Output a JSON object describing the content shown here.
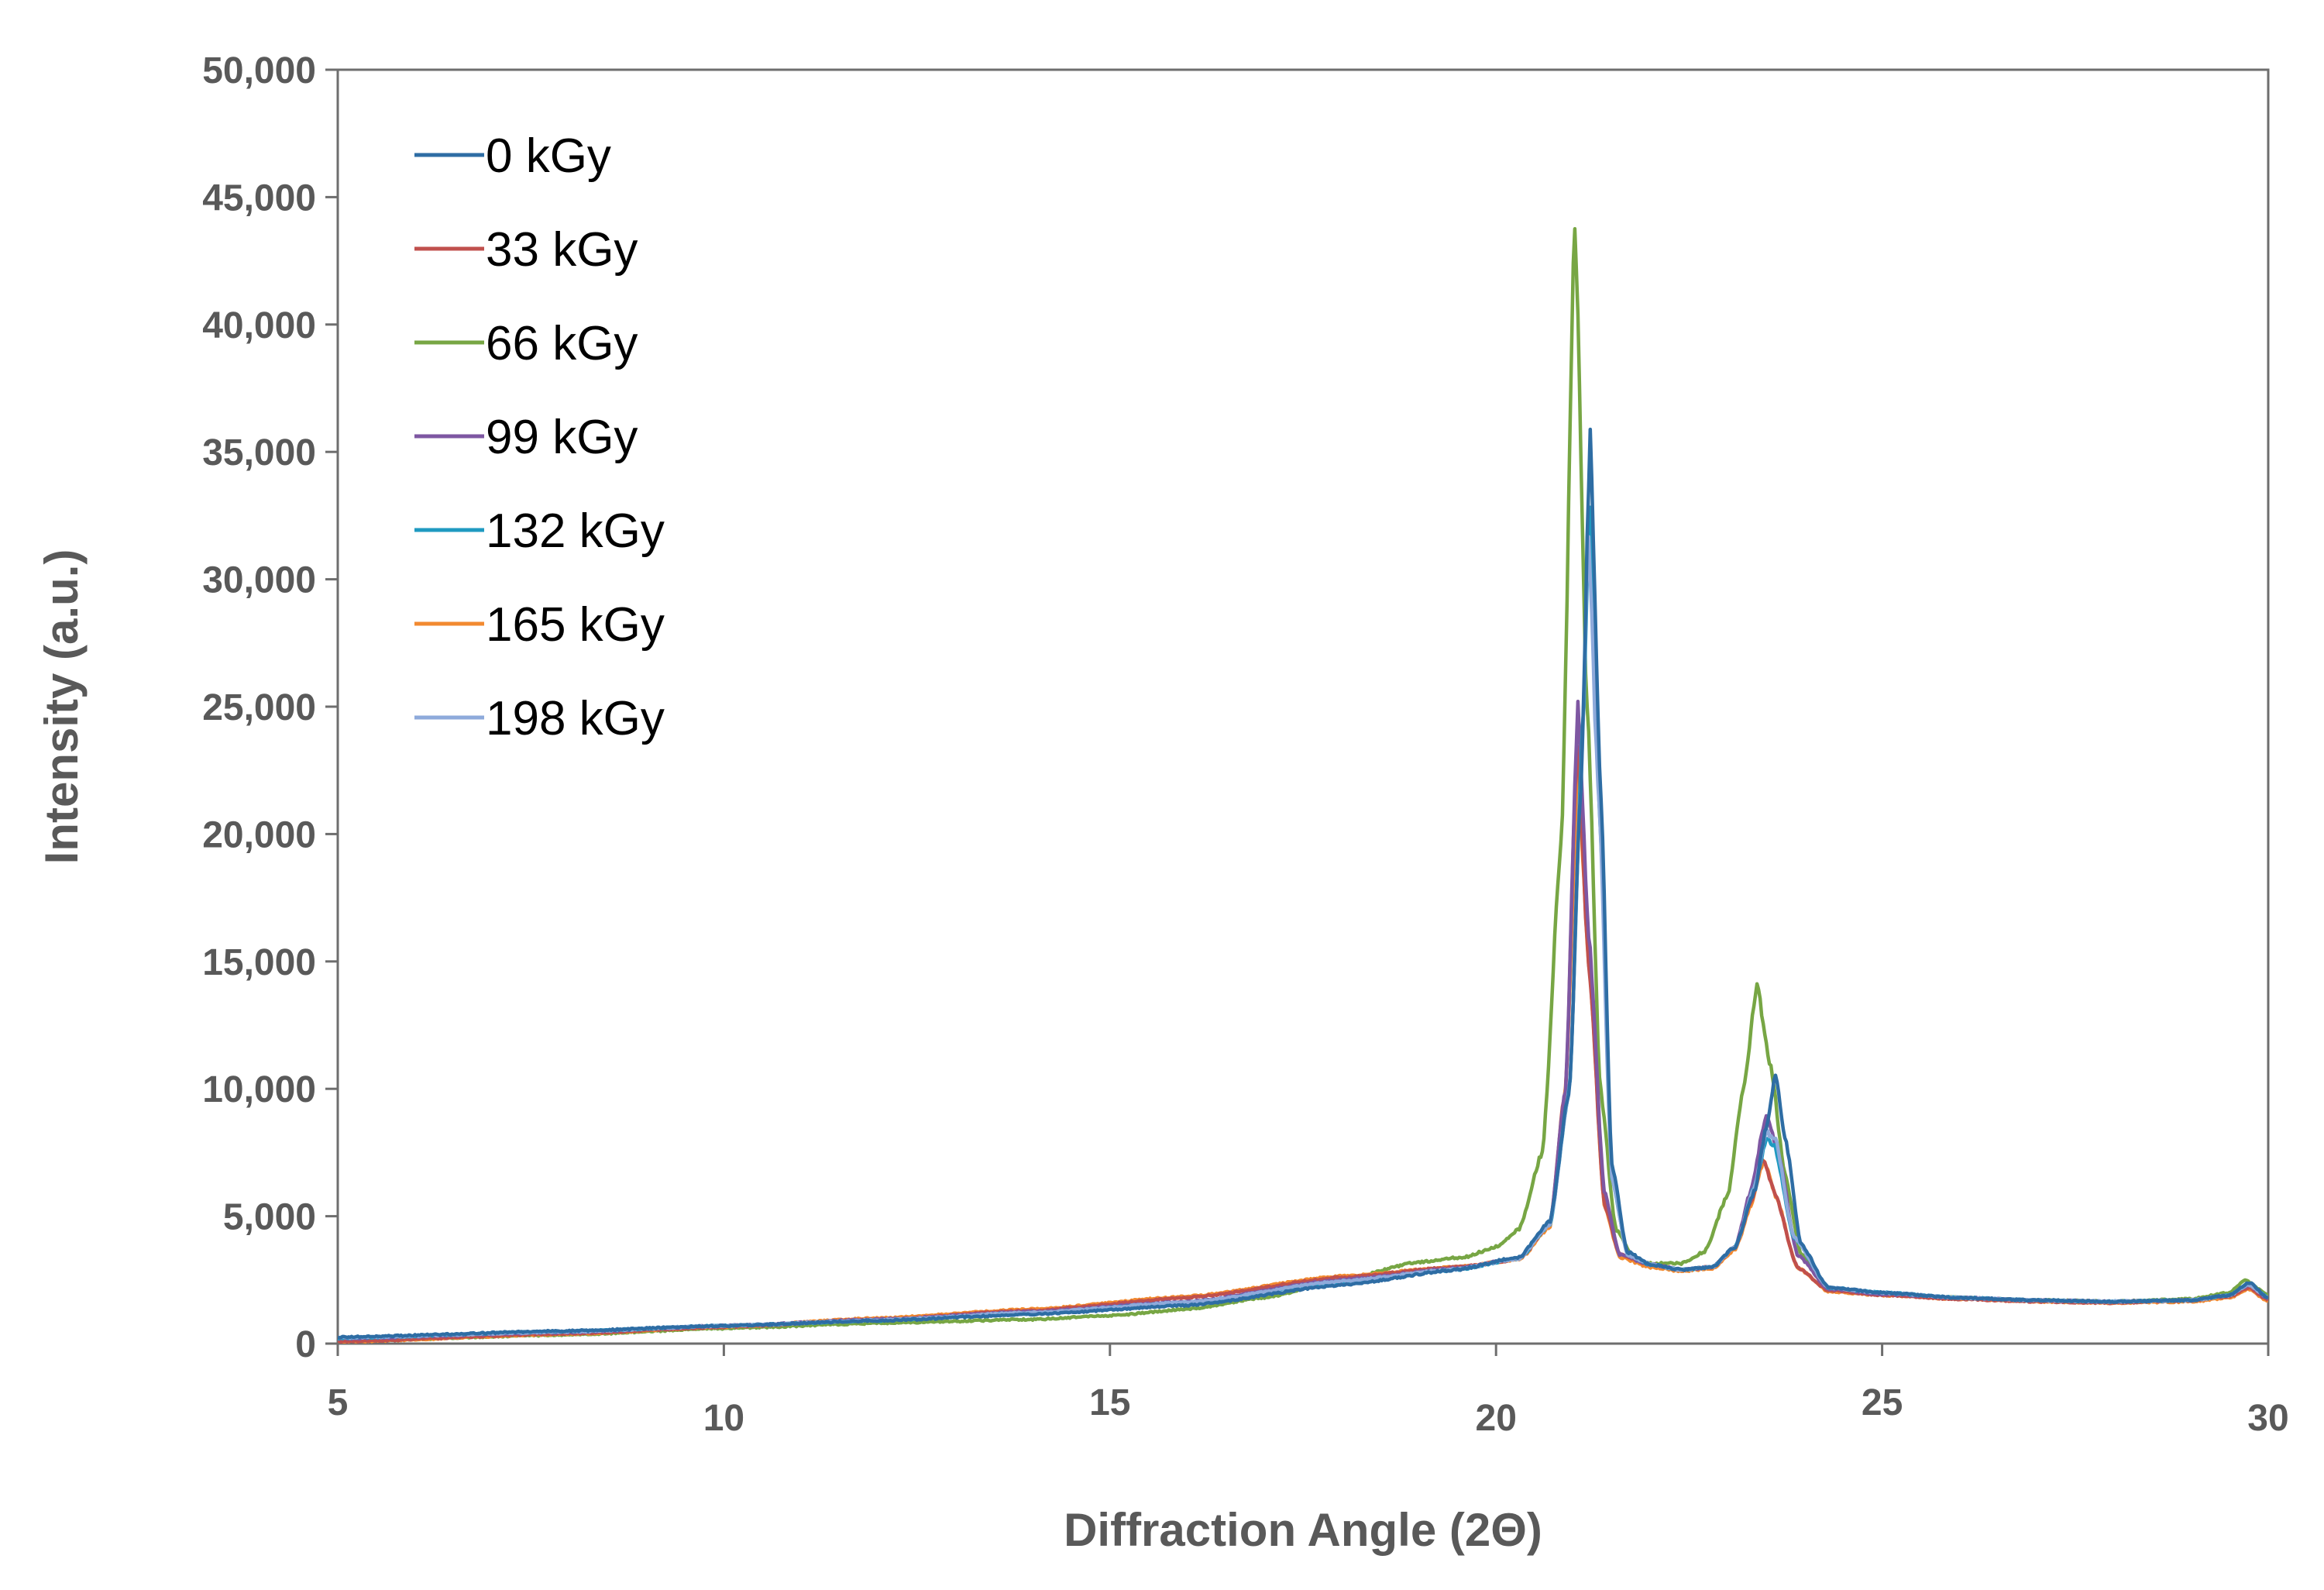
{
  "chart_data": {
    "type": "line",
    "title": "",
    "xlabel": "Diffraction Angle (2Θ)",
    "ylabel": "Intensity (a.u.)",
    "xlim": [
      5,
      30
    ],
    "ylim": [
      0,
      50000
    ],
    "x_ticks": [
      5,
      10,
      15,
      20,
      25,
      30
    ],
    "x_tick_labels": [
      "5",
      "10",
      "15",
      "20",
      "25",
      "30"
    ],
    "y_ticks": [
      0,
      5000,
      10000,
      15000,
      20000,
      25000,
      30000,
      35000,
      40000,
      45000,
      50000
    ],
    "y_tick_labels": [
      "0",
      "5,000",
      "10,000",
      "15,000",
      "20,000",
      "25,000",
      "30,000",
      "35,000",
      "40,000",
      "45,000",
      "50,000"
    ],
    "grid": false,
    "legend_position": "top-left",
    "series": [
      {
        "name": "0 kGy",
        "color": "#2E6DA4",
        "points": [
          [
            5,
            250
          ],
          [
            8,
            500
          ],
          [
            10,
            700
          ],
          [
            12,
            900
          ],
          [
            14,
            1150
          ],
          [
            16,
            1500
          ],
          [
            18,
            2300
          ],
          [
            19.5,
            2900
          ],
          [
            20.3,
            3400
          ],
          [
            20.7,
            4800
          ],
          [
            20.95,
            10000
          ],
          [
            21.1,
            22000
          ],
          [
            21.22,
            35500
          ],
          [
            21.35,
            22000
          ],
          [
            21.5,
            7000
          ],
          [
            21.7,
            3600
          ],
          [
            22,
            3100
          ],
          [
            22.4,
            2900
          ],
          [
            22.8,
            3000
          ],
          [
            23.1,
            3800
          ],
          [
            23.35,
            6000
          ],
          [
            23.5,
            8500
          ],
          [
            23.62,
            10500
          ],
          [
            23.75,
            8000
          ],
          [
            23.95,
            3900
          ],
          [
            24.3,
            2200
          ],
          [
            25,
            2000
          ],
          [
            26,
            1800
          ],
          [
            27,
            1700
          ],
          [
            28,
            1650
          ],
          [
            29,
            1700
          ],
          [
            29.5,
            1900
          ],
          [
            29.75,
            2400
          ],
          [
            30,
            1800
          ]
        ]
      },
      {
        "name": "33 kGy",
        "color": "#C0504D",
        "points": [
          [
            5,
            80
          ],
          [
            8,
            400
          ],
          [
            10,
            650
          ],
          [
            12,
            950
          ],
          [
            14,
            1300
          ],
          [
            16,
            1800
          ],
          [
            18,
            2600
          ],
          [
            19.5,
            3000
          ],
          [
            20.3,
            3300
          ],
          [
            20.7,
            4700
          ],
          [
            20.9,
            10000
          ],
          [
            21.05,
            23500
          ],
          [
            21.2,
            15000
          ],
          [
            21.4,
            5500
          ],
          [
            21.6,
            3500
          ],
          [
            22,
            3100
          ],
          [
            22.4,
            2900
          ],
          [
            22.8,
            3000
          ],
          [
            23.1,
            3800
          ],
          [
            23.3,
            5500
          ],
          [
            23.45,
            7300
          ],
          [
            23.6,
            6000
          ],
          [
            23.9,
            3000
          ],
          [
            24.3,
            2100
          ],
          [
            25,
            1900
          ],
          [
            26,
            1750
          ],
          [
            27,
            1650
          ],
          [
            28,
            1600
          ],
          [
            29,
            1700
          ],
          [
            29.5,
            1850
          ],
          [
            29.75,
            2200
          ],
          [
            30,
            1700
          ]
        ]
      },
      {
        "name": "66 kGy",
        "color": "#77A644",
        "points": [
          [
            5,
            100
          ],
          [
            8,
            350
          ],
          [
            10,
            600
          ],
          [
            12,
            800
          ],
          [
            14,
            950
          ],
          [
            15,
            1100
          ],
          [
            16,
            1350
          ],
          [
            17,
            1800
          ],
          [
            18,
            2500
          ],
          [
            19,
            3200
          ],
          [
            19.6,
            3400
          ],
          [
            20,
            3800
          ],
          [
            20.3,
            4500
          ],
          [
            20.6,
            7500
          ],
          [
            20.85,
            20000
          ],
          [
            21.02,
            44000
          ],
          [
            21.18,
            25000
          ],
          [
            21.35,
            10000
          ],
          [
            21.55,
            4500
          ],
          [
            21.8,
            3300
          ],
          [
            22,
            3150
          ],
          [
            22.4,
            3150
          ],
          [
            22.7,
            3600
          ],
          [
            23,
            5800
          ],
          [
            23.2,
            10000
          ],
          [
            23.38,
            14000
          ],
          [
            23.55,
            11000
          ],
          [
            23.75,
            6500
          ],
          [
            23.95,
            3500
          ],
          [
            24.3,
            2200
          ],
          [
            25,
            1950
          ],
          [
            26,
            1800
          ],
          [
            27,
            1700
          ],
          [
            28,
            1650
          ],
          [
            29,
            1750
          ],
          [
            29.5,
            2000
          ],
          [
            29.7,
            2500
          ],
          [
            30,
            1900
          ]
        ]
      },
      {
        "name": "99 kGy",
        "color": "#7E57A2",
        "points": [
          [
            5,
            200
          ],
          [
            8,
            450
          ],
          [
            10,
            700
          ],
          [
            12,
            950
          ],
          [
            14,
            1250
          ],
          [
            16,
            1650
          ],
          [
            18,
            2500
          ],
          [
            19.5,
            2950
          ],
          [
            20.3,
            3350
          ],
          [
            20.7,
            4700
          ],
          [
            20.9,
            10000
          ],
          [
            21.06,
            25000
          ],
          [
            21.2,
            16000
          ],
          [
            21.4,
            6000
          ],
          [
            21.6,
            3500
          ],
          [
            22,
            3100
          ],
          [
            22.4,
            2900
          ],
          [
            22.8,
            3000
          ],
          [
            23.1,
            3800
          ],
          [
            23.3,
            6000
          ],
          [
            23.5,
            9000
          ],
          [
            23.65,
            7500
          ],
          [
            23.9,
            3500
          ],
          [
            24.3,
            2150
          ],
          [
            25,
            1950
          ],
          [
            26,
            1800
          ],
          [
            27,
            1700
          ],
          [
            28,
            1650
          ],
          [
            29,
            1700
          ],
          [
            29.5,
            1900
          ],
          [
            29.75,
            2300
          ],
          [
            30,
            1750
          ]
        ]
      },
      {
        "name": "132 kGy",
        "color": "#1F9AC1",
        "points": [
          [
            5,
            220
          ],
          [
            8,
            480
          ],
          [
            10,
            700
          ],
          [
            12,
            900
          ],
          [
            14,
            1200
          ],
          [
            16,
            1600
          ],
          [
            18,
            2400
          ],
          [
            19.5,
            2900
          ],
          [
            20.3,
            3350
          ],
          [
            20.7,
            4700
          ],
          [
            20.95,
            10000
          ],
          [
            21.12,
            24000
          ],
          [
            21.22,
            33000
          ],
          [
            21.35,
            20000
          ],
          [
            21.5,
            6500
          ],
          [
            21.7,
            3500
          ],
          [
            22,
            3100
          ],
          [
            22.4,
            2900
          ],
          [
            22.8,
            3000
          ],
          [
            23.1,
            3800
          ],
          [
            23.35,
            6200
          ],
          [
            23.5,
            8000
          ],
          [
            23.6,
            7800
          ],
          [
            23.85,
            4200
          ],
          [
            24.3,
            2200
          ],
          [
            25,
            2000
          ],
          [
            26,
            1800
          ],
          [
            27,
            1700
          ],
          [
            28,
            1650
          ],
          [
            29,
            1700
          ],
          [
            29.5,
            1900
          ],
          [
            29.75,
            2350
          ],
          [
            30,
            1800
          ]
        ]
      },
      {
        "name": "165 kGy",
        "color": "#F28A30",
        "points": [
          [
            5,
            70
          ],
          [
            8,
            380
          ],
          [
            10,
            650
          ],
          [
            12,
            1000
          ],
          [
            14,
            1350
          ],
          [
            16,
            1850
          ],
          [
            18,
            2650
          ],
          [
            19.5,
            3000
          ],
          [
            20.3,
            3300
          ],
          [
            20.7,
            4600
          ],
          [
            20.9,
            10000
          ],
          [
            21.06,
            22500
          ],
          [
            21.2,
            15000
          ],
          [
            21.4,
            5500
          ],
          [
            21.6,
            3400
          ],
          [
            22,
            3000
          ],
          [
            22.4,
            2850
          ],
          [
            22.8,
            2950
          ],
          [
            23.1,
            3700
          ],
          [
            23.3,
            5400
          ],
          [
            23.47,
            7200
          ],
          [
            23.62,
            5800
          ],
          [
            23.9,
            3000
          ],
          [
            24.3,
            2050
          ],
          [
            25,
            1900
          ],
          [
            26,
            1750
          ],
          [
            27,
            1650
          ],
          [
            28,
            1600
          ],
          [
            29,
            1650
          ],
          [
            29.5,
            1800
          ],
          [
            29.75,
            2150
          ],
          [
            30,
            1650
          ]
        ]
      },
      {
        "name": "198 kGy",
        "color": "#8EAADB",
        "points": [
          [
            5,
            230
          ],
          [
            8,
            470
          ],
          [
            10,
            700
          ],
          [
            12,
            920
          ],
          [
            14,
            1220
          ],
          [
            16,
            1620
          ],
          [
            18,
            2450
          ],
          [
            19.5,
            2920
          ],
          [
            20.3,
            3350
          ],
          [
            20.7,
            4700
          ],
          [
            20.95,
            10000
          ],
          [
            21.1,
            22000
          ],
          [
            21.2,
            31500
          ],
          [
            21.32,
            22000
          ],
          [
            21.5,
            6500
          ],
          [
            21.7,
            3500
          ],
          [
            22,
            3100
          ],
          [
            22.4,
            2900
          ],
          [
            22.8,
            3000
          ],
          [
            23.1,
            3800
          ],
          [
            23.35,
            6200
          ],
          [
            23.5,
            8300
          ],
          [
            23.62,
            8000
          ],
          [
            23.85,
            4200
          ],
          [
            24.3,
            2200
          ],
          [
            25,
            2000
          ],
          [
            26,
            1800
          ],
          [
            27,
            1700
          ],
          [
            28,
            1650
          ],
          [
            29,
            1700
          ],
          [
            29.5,
            1900
          ],
          [
            29.75,
            2300
          ],
          [
            30,
            1800
          ]
        ]
      }
    ]
  }
}
